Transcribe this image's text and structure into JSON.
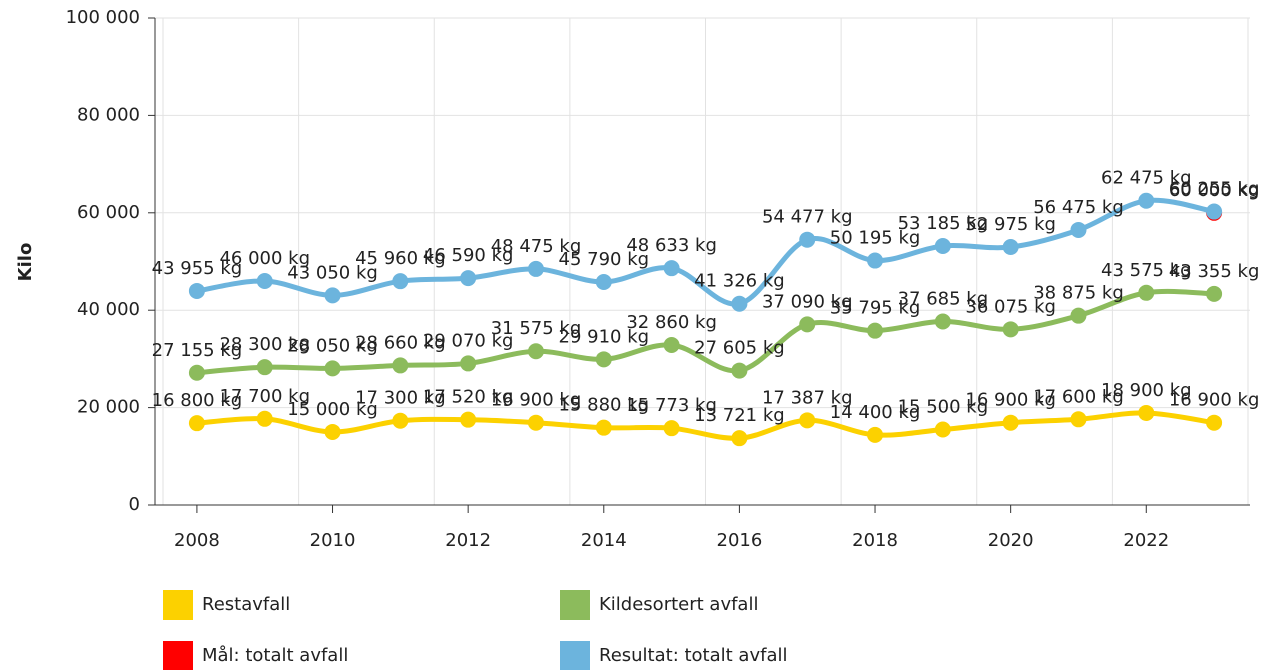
{
  "chart_data": {
    "type": "line",
    "y_label": "Kilo",
    "categories": [
      "2008",
      null,
      "2010",
      null,
      "2012",
      null,
      "2014",
      null,
      "2016",
      null,
      "2018",
      null,
      "2020",
      null,
      "2022",
      null
    ],
    "ylim": [
      0,
      100000
    ],
    "yticks": [
      {
        "value": 0,
        "label": "0"
      },
      {
        "value": 20000,
        "label": "20 000"
      },
      {
        "value": 40000,
        "label": "40 000"
      },
      {
        "value": 60000,
        "label": "60 000"
      },
      {
        "value": 80000,
        "label": "80 000"
      },
      {
        "value": 100000,
        "label": "100 000"
      }
    ],
    "grid": true,
    "legend": "bottom",
    "series": [
      {
        "name": "Restavfall",
        "color": "#fcd100",
        "values": [
          16800,
          17700,
          15000,
          17300,
          17520,
          16900,
          15880,
          15773,
          13721,
          17387,
          14400,
          15500,
          16900,
          17600,
          18900,
          16900
        ],
        "value_labels": [
          "16 800 kg",
          "17 700 kg",
          "15 000 kg",
          "17 300 kg",
          "17 520 kg",
          "16 900 kg",
          "15 880 kg",
          "15 773 kg",
          "13 721 kg",
          "17 387 kg",
          "14 400 kg",
          "15 500 kg",
          "16 900 kg",
          "17 600 kg",
          "18 900 kg",
          "16 900 kg"
        ]
      },
      {
        "name": "Kildesortert avfall",
        "color": "#8cbb5c",
        "values": [
          27155,
          28300,
          28050,
          28660,
          29070,
          31575,
          29910,
          32860,
          27605,
          37090,
          35795,
          37685,
          36075,
          38875,
          43575,
          43355
        ],
        "value_labels": [
          "27 155 kg",
          "28 300 kg",
          "28 050 kg",
          "28 660 kg",
          "29 070 kg",
          "31 575 kg",
          "29 910 kg",
          "32 860 kg",
          "27 605 kg",
          "37 090 kg",
          "35 795 kg",
          "37 685 kg",
          "36 075 kg",
          "38 875 kg",
          "43 575 kg",
          "43 355 kg"
        ]
      },
      {
        "name": "Mål: totalt avfall",
        "color": "#ff0000",
        "values": [
          null,
          null,
          null,
          null,
          null,
          null,
          null,
          null,
          null,
          null,
          null,
          null,
          null,
          null,
          null,
          60000
        ],
        "value_labels": [
          null,
          null,
          null,
          null,
          null,
          null,
          null,
          null,
          null,
          null,
          null,
          null,
          null,
          null,
          null,
          "60 000 kg"
        ]
      },
      {
        "name": "Resultat: totalt avfall",
        "color": "#6cb4dd",
        "values": [
          43955,
          46000,
          43050,
          45960,
          46590,
          48475,
          45790,
          48633,
          41326,
          54477,
          50195,
          53185,
          52975,
          56475,
          62475,
          60255
        ],
        "value_labels": [
          "43 955 kg",
          "46 000 kg",
          "43 050 kg",
          "45 960 kg",
          "46 590 kg",
          "48 475 kg",
          "45 790 kg",
          "48 633 kg",
          "41 326 kg",
          "54 477 kg",
          "50 195 kg",
          "53 185 kg",
          "52 975 kg",
          "56 475 kg",
          "62 475 kg",
          "60 255 kg"
        ]
      }
    ]
  }
}
